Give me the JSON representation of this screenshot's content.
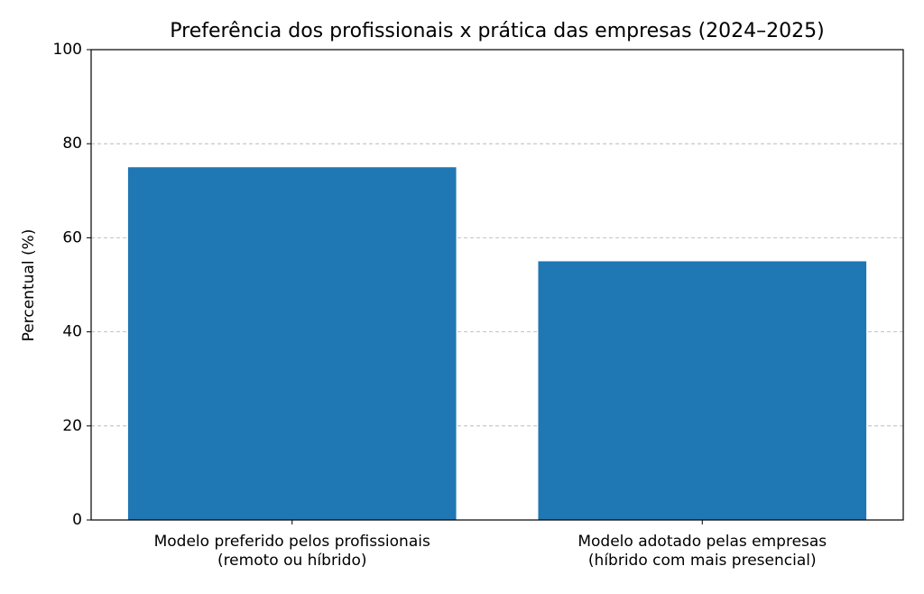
{
  "chart_data": {
    "type": "bar",
    "title": "Preferência dos profissionais x prática das empresas (2024–2025)",
    "y_label": "Percentual (%)",
    "categories": [
      "Modelo preferido pelos profissionais\n(remoto ou híbrido)",
      "Modelo adotado pelas empresas\n(híbrido com mais presencial)"
    ],
    "values": [
      75,
      55
    ],
    "color": "#1f77b4",
    "ylim": [
      0,
      100
    ],
    "yticks": [
      0,
      20,
      40,
      60,
      80,
      100
    ],
    "grid": true
  }
}
